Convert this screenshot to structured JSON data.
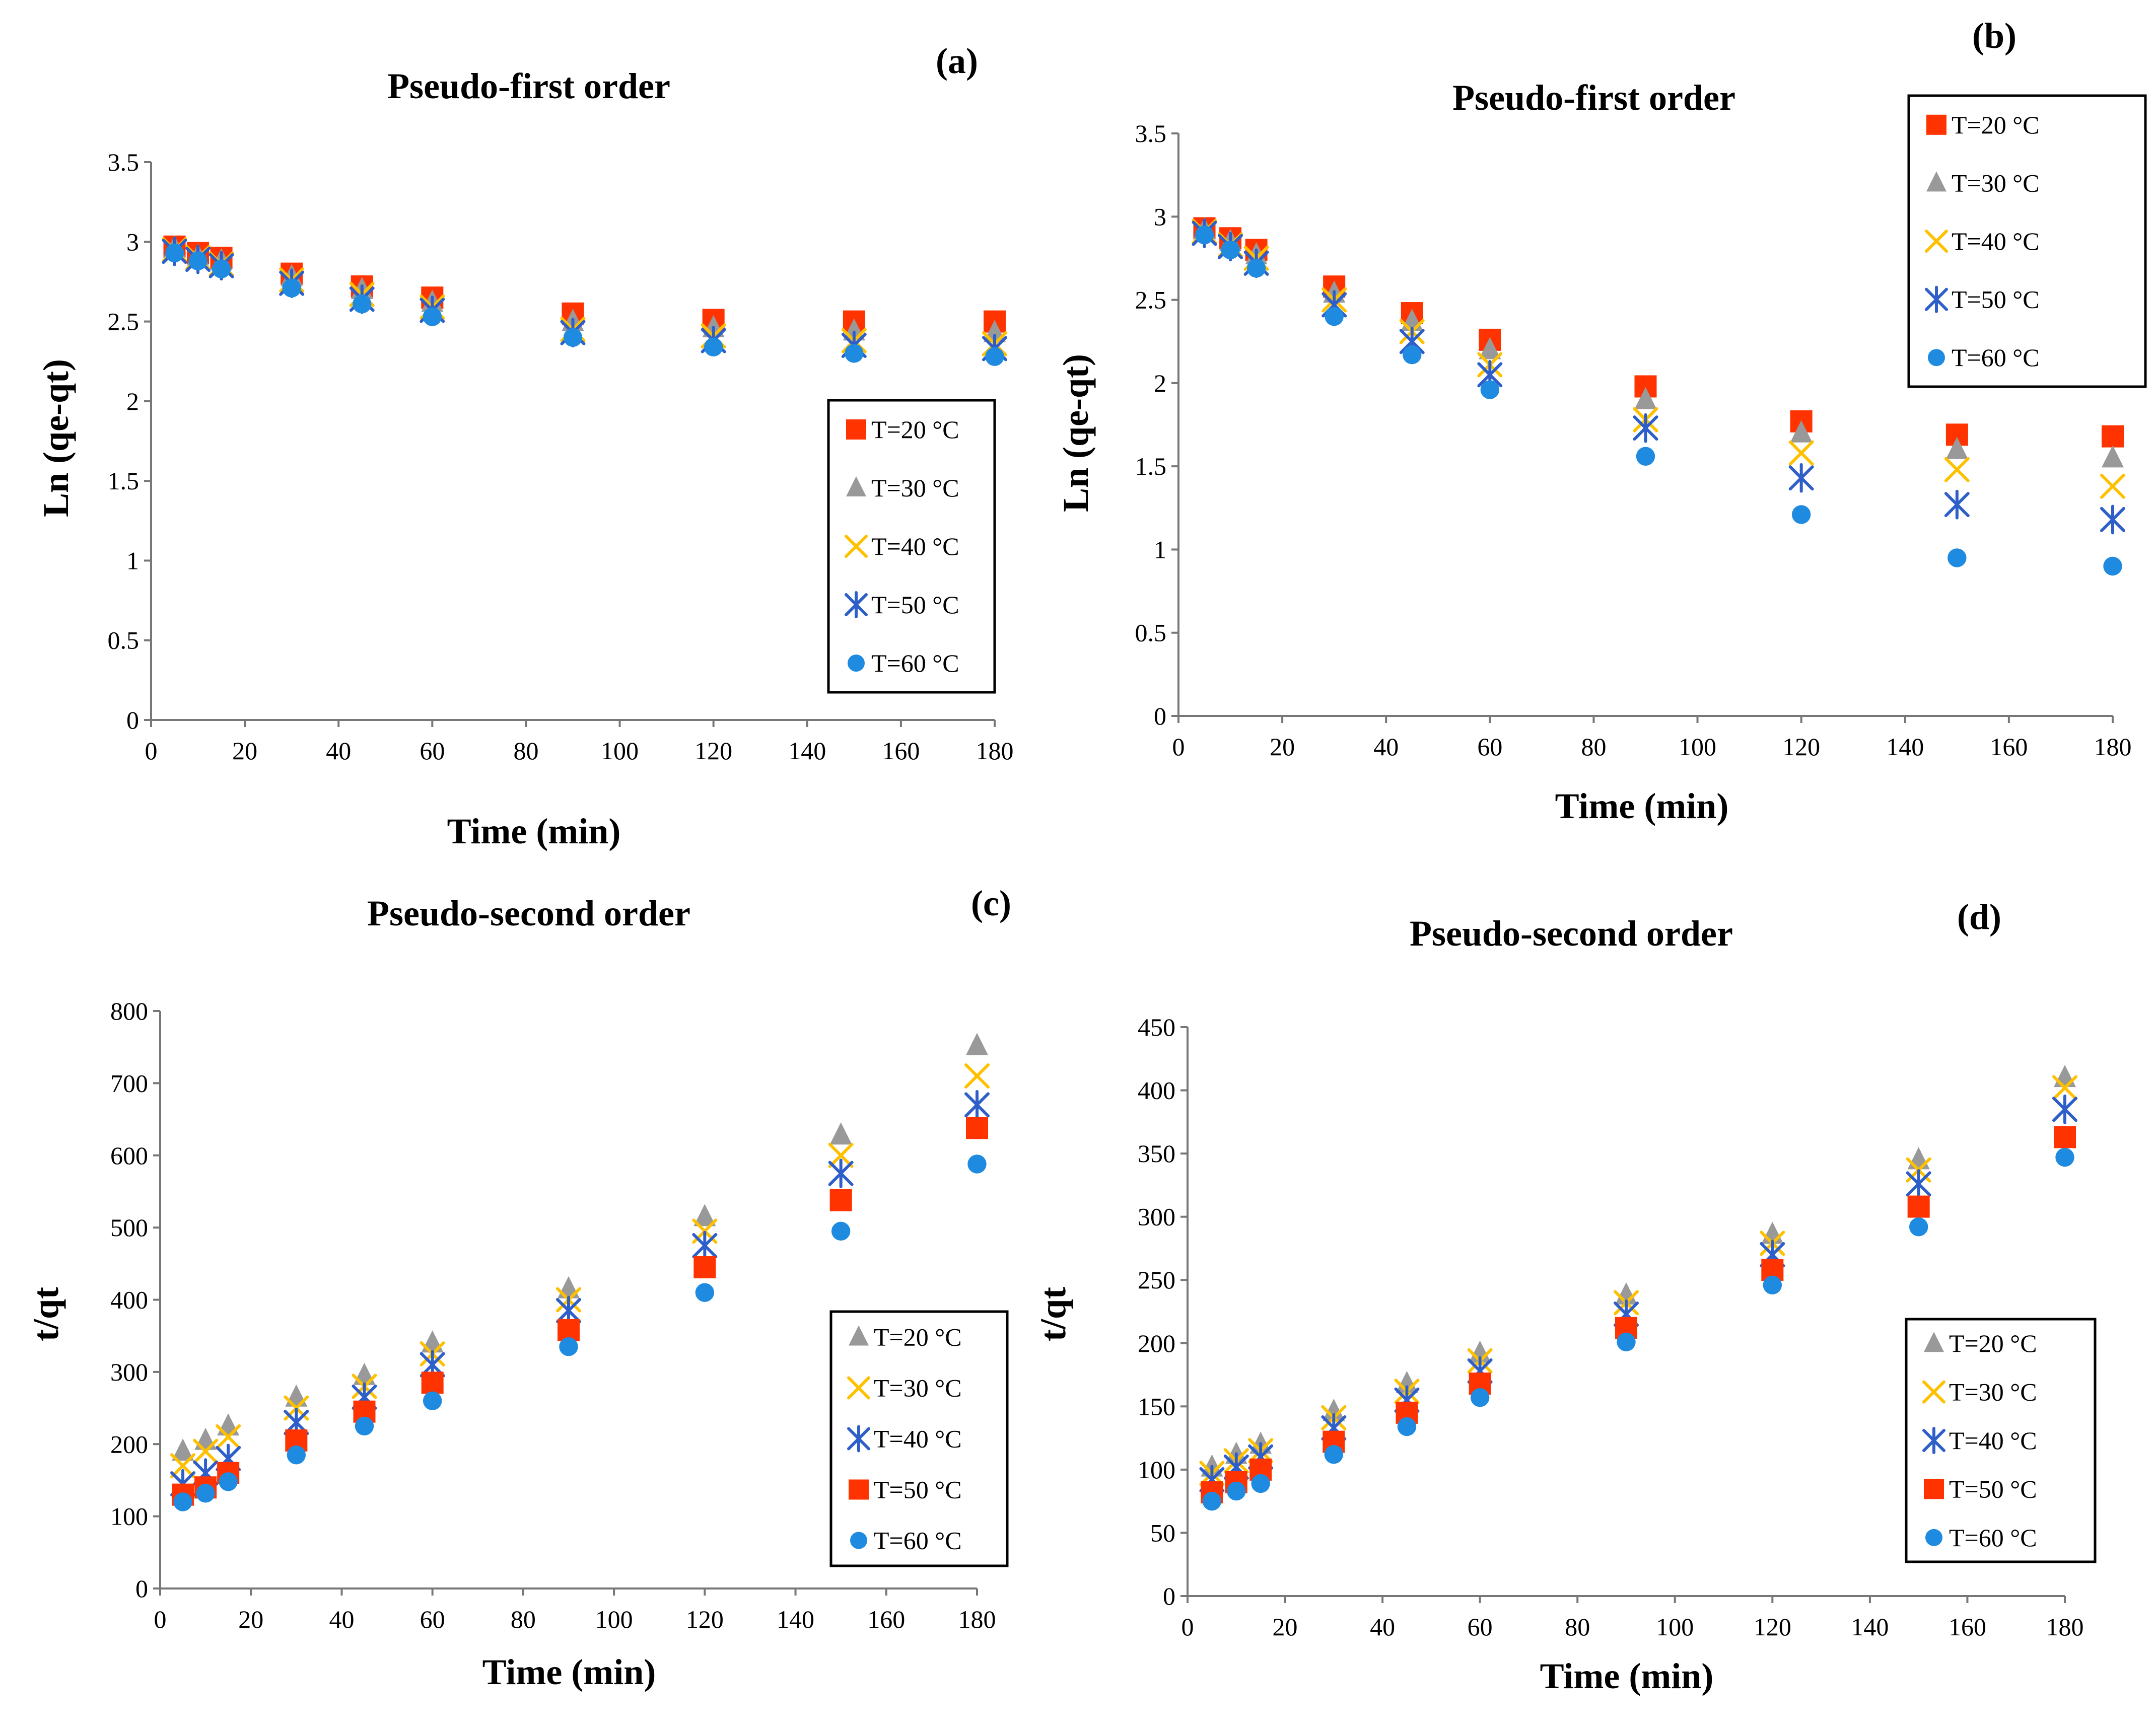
{
  "figure": {
    "series_styles": [
      {
        "key": "sq_red",
        "color": "#ff3300",
        "marker": "square"
      },
      {
        "key": "tri_gray",
        "color": "#999999",
        "marker": "triangle"
      },
      {
        "key": "x_yellow",
        "color": "#ffc000",
        "marker": "x"
      },
      {
        "key": "star_blue",
        "color": "#2e5fc9",
        "marker": "star"
      },
      {
        "key": "dot_blue",
        "color": "#1f8be0",
        "marker": "circle"
      }
    ]
  },
  "chart_data": [
    {
      "panel": "(a)",
      "type": "scatter",
      "title": "Pseudo-first order",
      "xlabel": "Time (min)",
      "ylabel": "Ln (qe-qt)",
      "xlim": [
        0,
        180
      ],
      "ylim": [
        0,
        3.5
      ],
      "xticks": [
        0,
        20,
        40,
        60,
        80,
        100,
        120,
        140,
        160,
        180
      ],
      "yticks": [
        0,
        0.5,
        1,
        1.5,
        2,
        2.5,
        3,
        3.5
      ],
      "ytick_labels": [
        "0",
        "0.5",
        "1",
        "1.5",
        "2",
        "2.5",
        "3",
        "3.5"
      ],
      "legend_position": "right-center",
      "x": [
        5,
        10,
        15,
        30,
        45,
        60,
        90,
        120,
        150,
        180
      ],
      "series": [
        {
          "name": "T=20 °C",
          "style": "sq_red",
          "values": [
            2.97,
            2.93,
            2.9,
            2.8,
            2.72,
            2.65,
            2.55,
            2.51,
            2.5,
            2.5
          ]
        },
        {
          "name": "T=30 °C",
          "style": "tri_gray",
          "values": [
            2.96,
            2.91,
            2.88,
            2.78,
            2.7,
            2.62,
            2.5,
            2.46,
            2.44,
            2.43
          ]
        },
        {
          "name": "T=40 °C",
          "style": "x_yellow",
          "values": [
            2.95,
            2.9,
            2.86,
            2.76,
            2.67,
            2.59,
            2.45,
            2.41,
            2.38,
            2.36
          ]
        },
        {
          "name": "T=50 °C",
          "style": "star_blue",
          "values": [
            2.94,
            2.89,
            2.85,
            2.74,
            2.64,
            2.57,
            2.43,
            2.38,
            2.35,
            2.33
          ]
        },
        {
          "name": "T=60 °C",
          "style": "dot_blue",
          "values": [
            2.93,
            2.88,
            2.83,
            2.71,
            2.61,
            2.53,
            2.4,
            2.34,
            2.3,
            2.28
          ]
        }
      ]
    },
    {
      "panel": "(b)",
      "type": "scatter",
      "title": "Pseudo-first order",
      "xlabel": "Time (min)",
      "ylabel": "Ln (qe-qt)",
      "xlim": [
        0,
        180
      ],
      "ylim": [
        0,
        3.5
      ],
      "xticks": [
        0,
        20,
        40,
        60,
        80,
        100,
        120,
        140,
        160,
        180
      ],
      "yticks": [
        0,
        0.5,
        1,
        1.5,
        2,
        2.5,
        3,
        3.5
      ],
      "ytick_labels": [
        "0",
        "0.5",
        "1",
        "1.5",
        "2",
        "2.5",
        "3",
        "3.5"
      ],
      "legend_position": "top-right",
      "x": [
        5,
        10,
        15,
        30,
        45,
        60,
        90,
        120,
        150,
        180
      ],
      "series": [
        {
          "name": "T=20 °C",
          "style": "sq_red",
          "values": [
            2.93,
            2.87,
            2.8,
            2.58,
            2.42,
            2.26,
            1.98,
            1.77,
            1.69,
            1.68
          ]
        },
        {
          "name": "T=30 °C",
          "style": "tri_gray",
          "values": [
            2.92,
            2.85,
            2.77,
            2.54,
            2.37,
            2.2,
            1.9,
            1.7,
            1.6,
            1.55
          ]
        },
        {
          "name": "T=40 °C",
          "style": "x_yellow",
          "values": [
            2.91,
            2.83,
            2.75,
            2.5,
            2.31,
            2.11,
            1.78,
            1.58,
            1.48,
            1.38
          ]
        },
        {
          "name": "T=50 °C",
          "style": "star_blue",
          "values": [
            2.9,
            2.82,
            2.72,
            2.47,
            2.25,
            2.05,
            1.73,
            1.43,
            1.27,
            1.18
          ]
        },
        {
          "name": "T=60 °C",
          "style": "dot_blue",
          "values": [
            2.89,
            2.8,
            2.69,
            2.4,
            2.17,
            1.96,
            1.56,
            1.21,
            0.95,
            0.9
          ]
        }
      ]
    },
    {
      "panel": "(c)",
      "type": "scatter",
      "title": "Pseudo-second order",
      "xlabel": "Time (min)",
      "ylabel": "t/qt",
      "xlim": [
        0,
        180
      ],
      "ylim": [
        0,
        800
      ],
      "xticks": [
        0,
        20,
        40,
        60,
        80,
        100,
        120,
        140,
        160,
        180
      ],
      "yticks": [
        0,
        100,
        200,
        300,
        400,
        500,
        600,
        700,
        800
      ],
      "ytick_labels": [
        "0",
        "100",
        "200",
        "300",
        "400",
        "500",
        "600",
        "700",
        "800"
      ],
      "legend_position": "bottom-right",
      "x": [
        5,
        10,
        15,
        30,
        45,
        60,
        90,
        120,
        150,
        180
      ],
      "series": [
        {
          "name": "T=20 °C",
          "style": "tri_gray",
          "values": [
            190,
            205,
            225,
            265,
            295,
            340,
            415,
            515,
            628,
            752
          ]
        },
        {
          "name": "T=30 °C",
          "style": "x_yellow",
          "values": [
            170,
            190,
            210,
            250,
            280,
            325,
            400,
            495,
            600,
            710
          ]
        },
        {
          "name": "T=40 °C",
          "style": "star_blue",
          "values": [
            145,
            160,
            180,
            230,
            265,
            310,
            385,
            475,
            575,
            670
          ]
        },
        {
          "name": "T=50 °C",
          "style": "sq_red",
          "values": [
            130,
            140,
            160,
            205,
            245,
            285,
            358,
            445,
            538,
            638
          ]
        },
        {
          "name": "T=60 °C",
          "style": "dot_blue",
          "values": [
            120,
            132,
            148,
            185,
            225,
            260,
            335,
            410,
            495,
            588
          ]
        }
      ]
    },
    {
      "panel": "(d)",
      "type": "scatter",
      "title": "Pseudo-second order",
      "xlabel": "Time (min)",
      "ylabel": "t/qt",
      "xlim": [
        0,
        180
      ],
      "ylim": [
        0,
        450
      ],
      "xticks": [
        0,
        20,
        40,
        60,
        80,
        100,
        120,
        140,
        160,
        180
      ],
      "yticks": [
        0,
        50,
        100,
        150,
        200,
        250,
        300,
        350,
        400,
        450
      ],
      "ytick_labels": [
        "0",
        "50",
        "100",
        "150",
        "200",
        "250",
        "300",
        "350",
        "400",
        "450"
      ],
      "legend_position": "bottom-right",
      "x": [
        5,
        10,
        15,
        30,
        45,
        60,
        90,
        120,
        150,
        180
      ],
      "series": [
        {
          "name": "T=20 °C",
          "style": "tri_gray",
          "values": [
            102,
            112,
            120,
            146,
            168,
            192,
            238,
            286,
            345,
            410
          ]
        },
        {
          "name": "T=30 °C",
          "style": "x_yellow",
          "values": [
            97,
            107,
            115,
            141,
            162,
            186,
            232,
            279,
            337,
            402
          ]
        },
        {
          "name": "T=40 °C",
          "style": "star_blue",
          "values": [
            92,
            102,
            110,
            133,
            155,
            178,
            223,
            270,
            326,
            385
          ]
        },
        {
          "name": "T=50 °C",
          "style": "sq_red",
          "values": [
            82,
            90,
            100,
            122,
            145,
            168,
            212,
            258,
            308,
            363
          ]
        },
        {
          "name": "T=60 °C",
          "style": "dot_blue",
          "values": [
            75,
            83,
            89,
            112,
            134,
            157,
            201,
            246,
            292,
            347
          ]
        }
      ]
    }
  ]
}
